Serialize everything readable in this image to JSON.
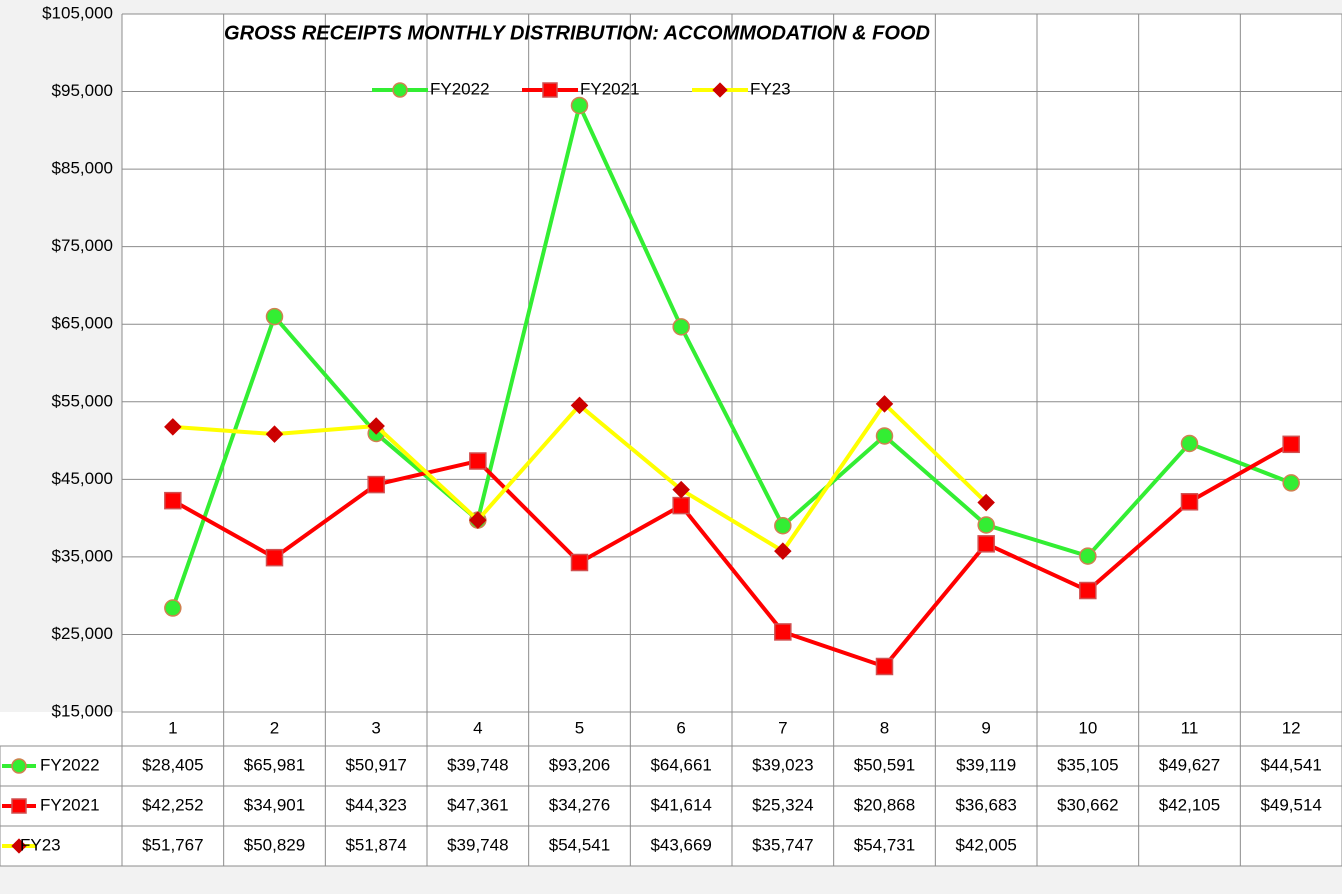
{
  "chart_data": {
    "type": "line",
    "title": "GROSS RECEIPTS MONTHLY DISTRIBUTION:  ACCOMMODATION & FOOD",
    "categories": [
      1,
      2,
      3,
      4,
      5,
      6,
      7,
      8,
      9,
      10,
      11,
      12
    ],
    "series": [
      {
        "name": "FY2022",
        "color": "#33ee33",
        "marker": "circle",
        "marker_color": "#33ee33",
        "marker_edge": "#d08050",
        "values": [
          28405,
          65981,
          50917,
          39748,
          93206,
          64661,
          39023,
          50591,
          39119,
          35105,
          49627,
          44541
        ],
        "value_labels": [
          "$28,405",
          "$65,981",
          "$50,917",
          "$39,748",
          "$93,206",
          "$64,661",
          "$39,023",
          "$50,591",
          "$39,119",
          "$35,105",
          "$49,627",
          "$44,541"
        ]
      },
      {
        "name": "FY2021",
        "color": "#ff0000",
        "marker": "square",
        "marker_color": "#ff0000",
        "marker_edge": "#d05050",
        "values": [
          42252,
          34901,
          44323,
          47361,
          34276,
          41614,
          25324,
          20868,
          36683,
          30662,
          42105,
          49514
        ],
        "value_labels": [
          "$42,252",
          "$34,901",
          "$44,323",
          "$47,361",
          "$34,276",
          "$41,614",
          "$25,324",
          "$20,868",
          "$36,683",
          "$30,662",
          "$42,105",
          "$49,514"
        ]
      },
      {
        "name": "FY23",
        "color": "#ffff00",
        "marker": "diamond",
        "marker_color": "#cc0000",
        "marker_edge": "#cc0000",
        "values": [
          51767,
          50829,
          51874,
          39748,
          54541,
          43669,
          35747,
          54731,
          42005,
          null,
          null,
          null
        ],
        "value_labels": [
          "$51,767",
          "$50,829",
          "$51,874",
          "$39,748",
          "$54,541",
          "$43,669",
          "$35,747",
          "$54,731",
          "$42,005",
          null,
          null,
          null
        ]
      }
    ],
    "ylim": [
      15000,
      105000
    ],
    "yticks": [
      {
        "value": 15000,
        "label": "$15,000"
      },
      {
        "value": 25000,
        "label": "$25,000"
      },
      {
        "value": 35000,
        "label": "$35,000"
      },
      {
        "value": 45000,
        "label": "$45,000"
      },
      {
        "value": 55000,
        "label": "$55,000"
      },
      {
        "value": 65000,
        "label": "$65,000"
      },
      {
        "value": 75000,
        "label": "$75,000"
      },
      {
        "value": 85000,
        "label": "$85,000"
      },
      {
        "value": 95000,
        "label": "$95,000"
      },
      {
        "value": 105000,
        "label": "$105,000"
      }
    ],
    "grid": true,
    "legend": "top",
    "data_table": true
  }
}
